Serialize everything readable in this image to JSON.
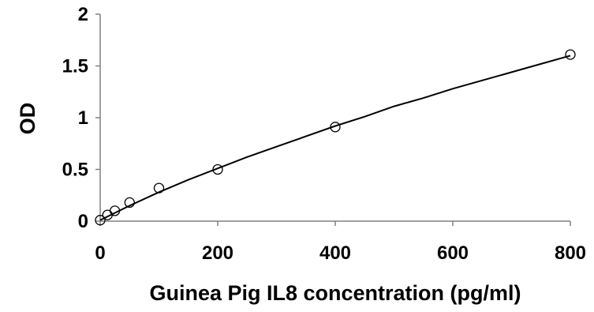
{
  "chart_data": {
    "type": "scatter",
    "title": "",
    "xlabel": "Guinea Pig IL8 concentration (pg/ml)",
    "ylabel": "OD",
    "xlim": [
      0,
      800
    ],
    "ylim": [
      0,
      2
    ],
    "xticks": [
      0,
      200,
      400,
      600,
      800
    ],
    "yticks": [
      0,
      0.5,
      1,
      1.5,
      2
    ],
    "xtick_labels": [
      "0",
      "200",
      "400",
      "600",
      "800"
    ],
    "ytick_labels": [
      "0",
      "0.5",
      "1",
      "1.5",
      "2"
    ],
    "grid": false,
    "legend": "none",
    "series": [
      {
        "marker": "open-circle",
        "x": [
          0,
          12.5,
          25,
          50,
          100,
          200,
          400,
          800
        ],
        "y": [
          0.01,
          0.06,
          0.1,
          0.18,
          0.32,
          0.5,
          0.91,
          1.61
        ]
      }
    ],
    "trendline": {
      "type": "polynomial-fit",
      "x": [
        0,
        50,
        100,
        150,
        200,
        250,
        300,
        350,
        400,
        450,
        500,
        550,
        600,
        650,
        700,
        750,
        800
      ],
      "y": [
        0.01,
        0.15,
        0.28,
        0.4,
        0.51,
        0.62,
        0.72,
        0.82,
        0.92,
        1.01,
        1.11,
        1.19,
        1.28,
        1.36,
        1.44,
        1.52,
        1.6
      ]
    },
    "colors": {
      "axis": "#808080",
      "marker": "#000000",
      "line": "#000000"
    }
  }
}
